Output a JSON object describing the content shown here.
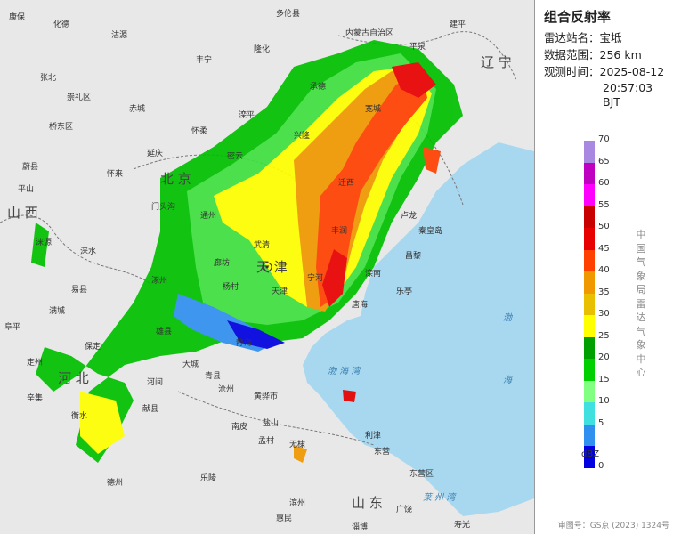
{
  "panel": {
    "title": "组合反射率",
    "station_label": "雷达站名：",
    "station": "宝坻",
    "range_label": "数据范围：",
    "range": "256 km",
    "time_label": "观测时间：",
    "date": "2025-08-12",
    "time": "20:57:03 BJT",
    "unit": "dBZ",
    "org": "中国气象局雷达气象中心",
    "approval": "审图号：GS京 (2023) 1324号"
  },
  "legend": [
    {
      "label": "70",
      "color": "#a888e0"
    },
    {
      "label": "65",
      "color": "#c000c0"
    },
    {
      "label": "60",
      "color": "#ff00ff"
    },
    {
      "label": "55",
      "color": "#c80000"
    },
    {
      "label": "50",
      "color": "#e80000"
    },
    {
      "label": "45",
      "color": "#ff4000"
    },
    {
      "label": "40",
      "color": "#f09800"
    },
    {
      "label": "35",
      "color": "#e8c000"
    },
    {
      "label": "30",
      "color": "#ffff00"
    },
    {
      "label": "25",
      "color": "#00a000"
    },
    {
      "label": "20",
      "color": "#00d000"
    },
    {
      "label": "15",
      "color": "#80ff80"
    },
    {
      "label": "10",
      "color": "#40e0e0"
    },
    {
      "label": "5",
      "color": "#3090f0"
    },
    {
      "label": "0",
      "color": "#0000e0"
    }
  ],
  "map": {
    "provinces": [
      "山西",
      "河北",
      "北京",
      "天津",
      "辽宁",
      "山东"
    ],
    "seas": [
      "渤海湾",
      "渤海",
      "莱州湾",
      "渤海"
    ],
    "places": [
      "康保",
      "化德",
      "内蒙古自治区",
      "多伦县",
      "建平",
      "张北",
      "沽源",
      "丰宁",
      "平泉",
      "崇礼区",
      "赤城",
      "隆化",
      "承德",
      "宽城",
      "桥东区",
      "怀来",
      "延庆",
      "滦平",
      "兴隆",
      "秦皇岛",
      "平山",
      "蔚县",
      "怀柔",
      "密云",
      "迁西",
      "卢龙",
      "昌黎",
      "涞源",
      "门头沟",
      "通州",
      "丰润",
      "滦南",
      "乐亭",
      "易县",
      "涿州",
      "廊坊",
      "武清",
      "宁河",
      "唐海",
      "保定",
      "雄县",
      "静海",
      "黄骅市",
      "定州",
      "河间",
      "沧州",
      "辛集",
      "衡水",
      "德州",
      "盐山",
      "无棣",
      "东营",
      "滨州",
      "利津",
      "寿光",
      "阜平",
      "涞水",
      "满城",
      "天津",
      "杨村",
      "大城",
      "青县",
      "献县",
      "南皮",
      "孟村",
      "乐陵",
      "惠民",
      "东营区",
      "广饶",
      "淄博"
    ]
  }
}
